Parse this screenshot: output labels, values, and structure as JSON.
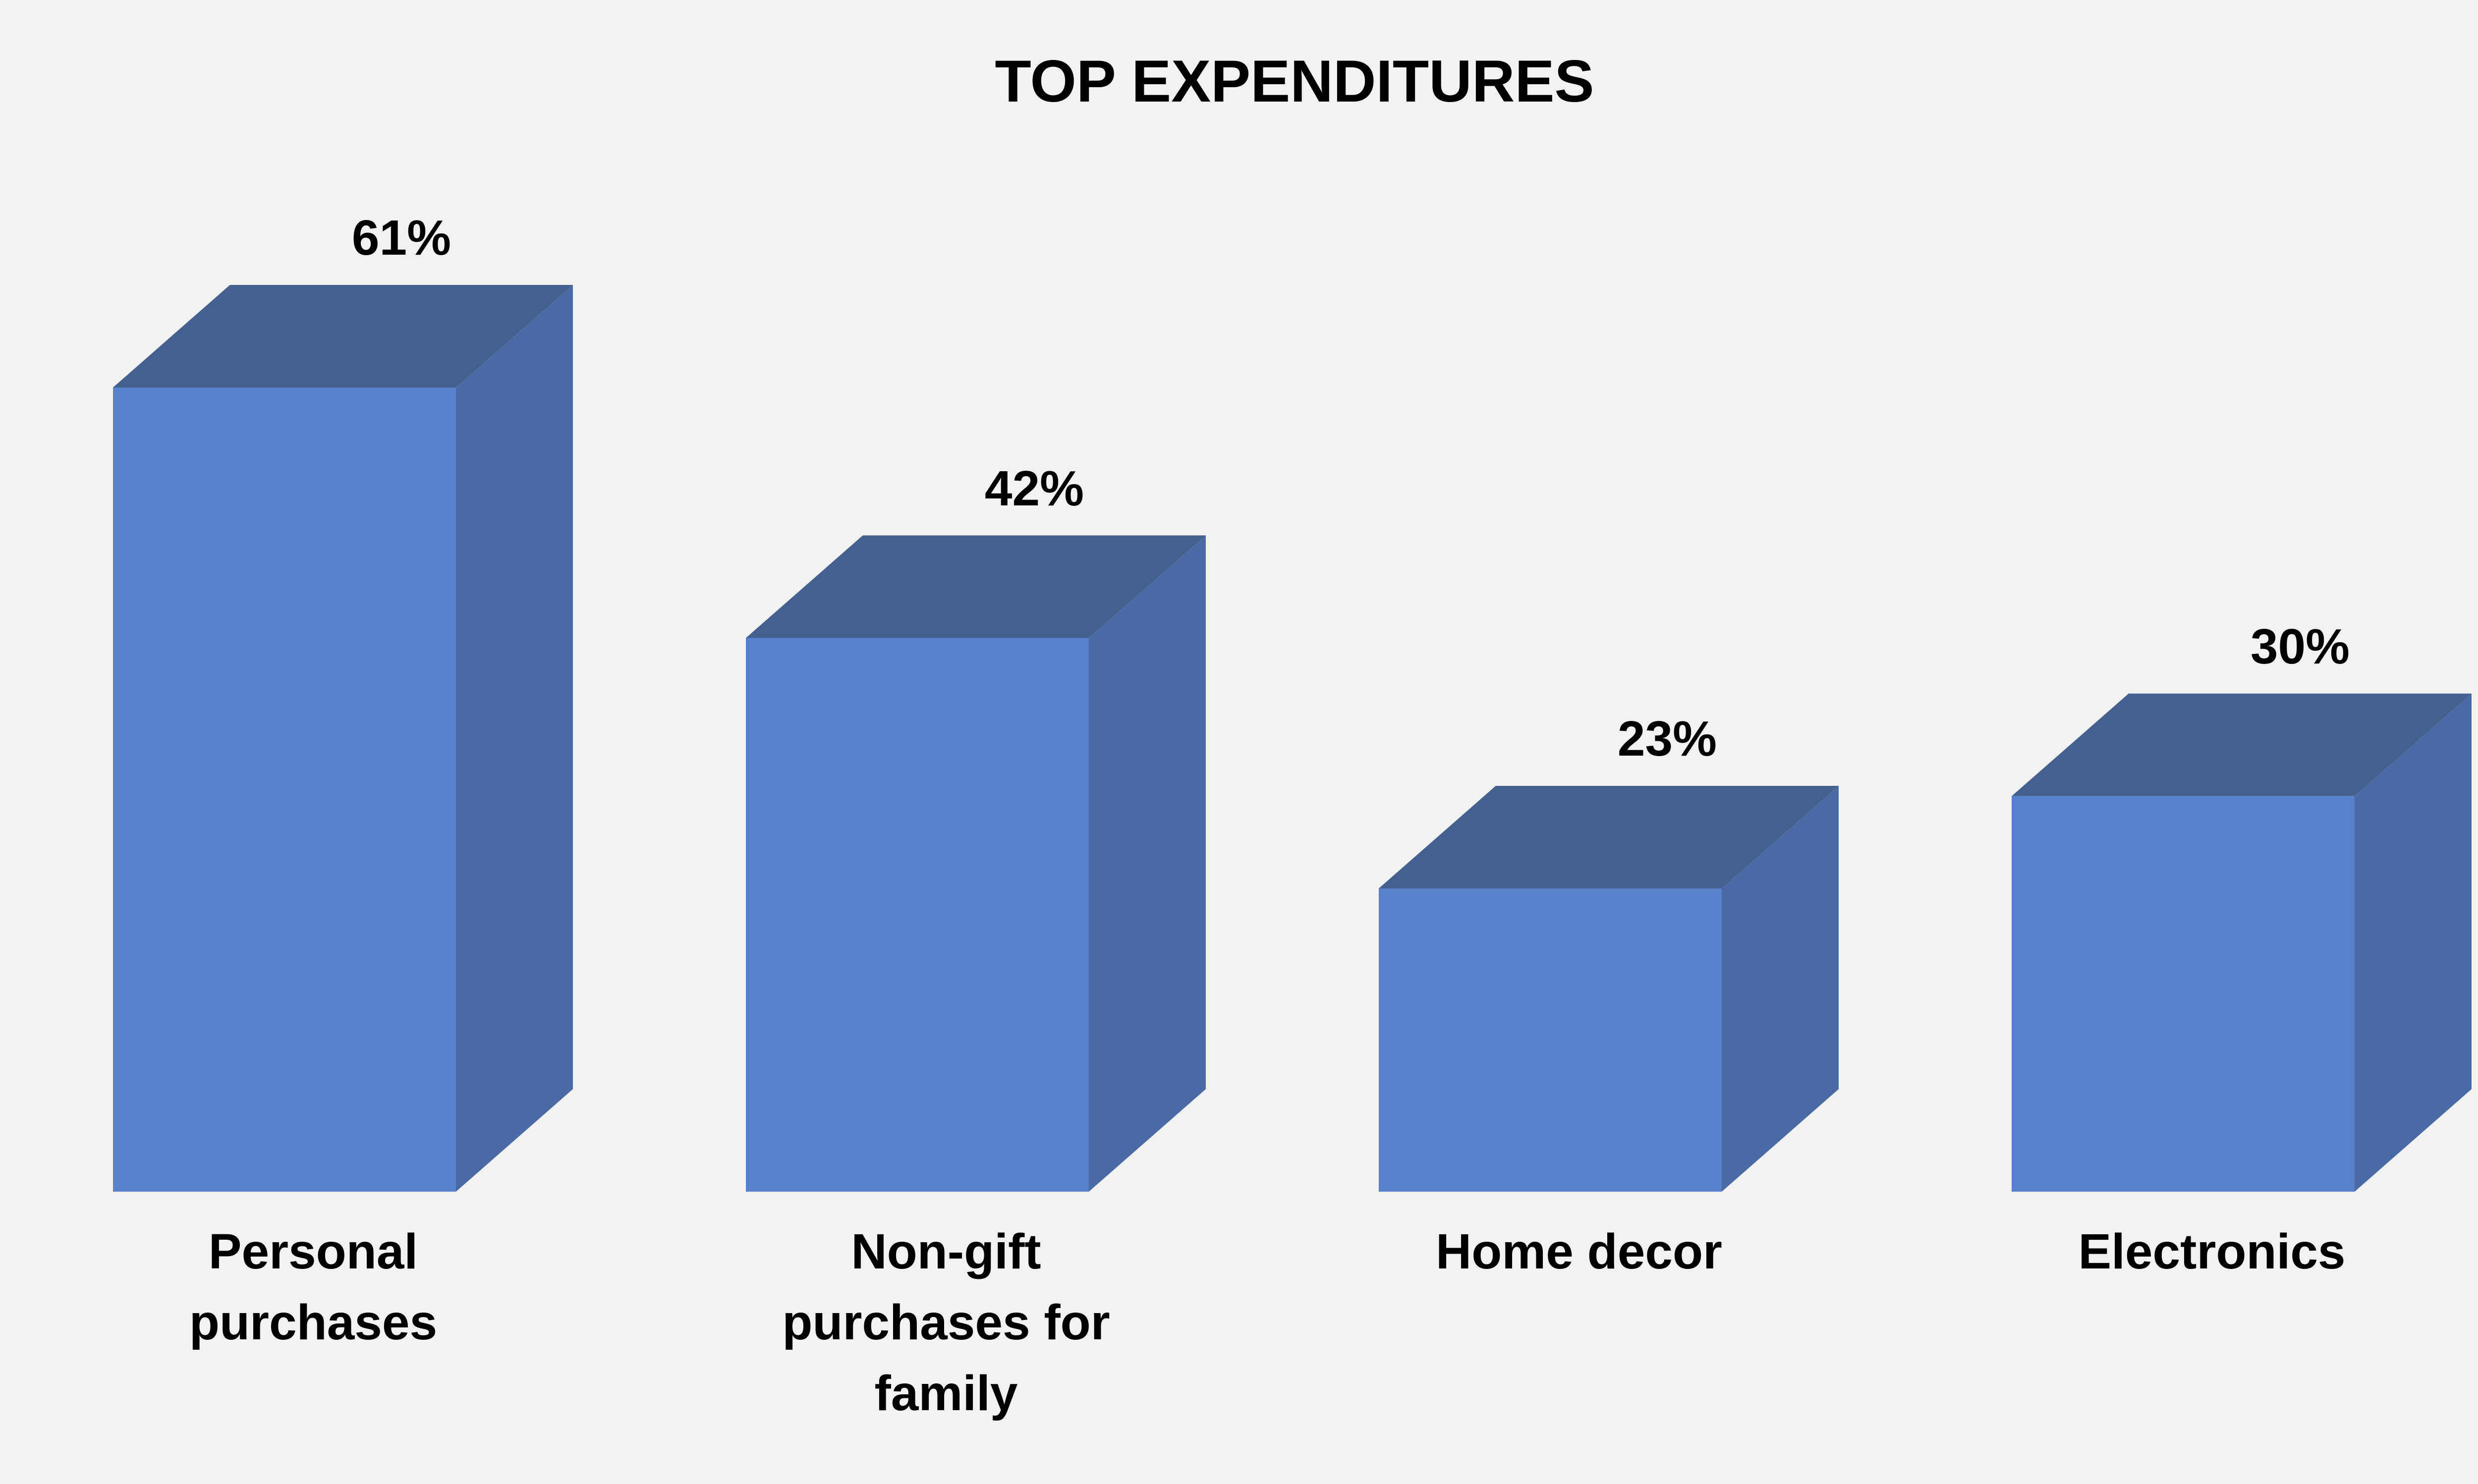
{
  "chart_data": {
    "type": "bar",
    "title": "TOP EXPENDITURES",
    "categories": [
      "Personal\npurchases",
      "Non-gift\npurchases for\nfamily",
      "Home decor",
      "Electronics"
    ],
    "values": [
      61,
      42,
      23,
      30
    ],
    "value_labels": [
      "61%",
      "42%",
      "23%",
      "30%"
    ],
    "ylim": [
      0,
      61
    ],
    "grid": false,
    "legend": "none",
    "style": "3d-column",
    "colors": {
      "front": "#5781c9",
      "side": "#4a6aa3",
      "top": "#43608e",
      "background": "#f2f2f2",
      "text": "#000000"
    }
  }
}
